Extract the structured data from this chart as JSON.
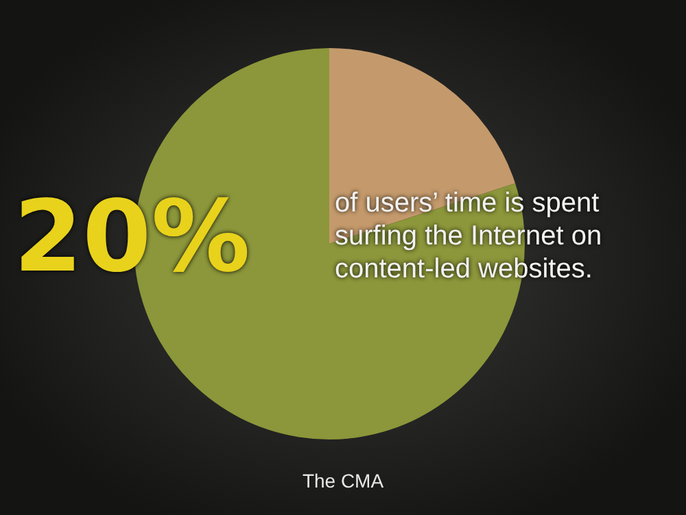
{
  "chart_data": {
    "type": "pie",
    "categories": [
      null,
      null
    ],
    "values": [
      20,
      80
    ],
    "colors": [
      "#c49a6c",
      "#8c963a"
    ],
    "annotations": [
      "20%",
      "of users’ time is spent surfing the Internet on content-led websites.",
      "The CMA"
    ]
  }
}
